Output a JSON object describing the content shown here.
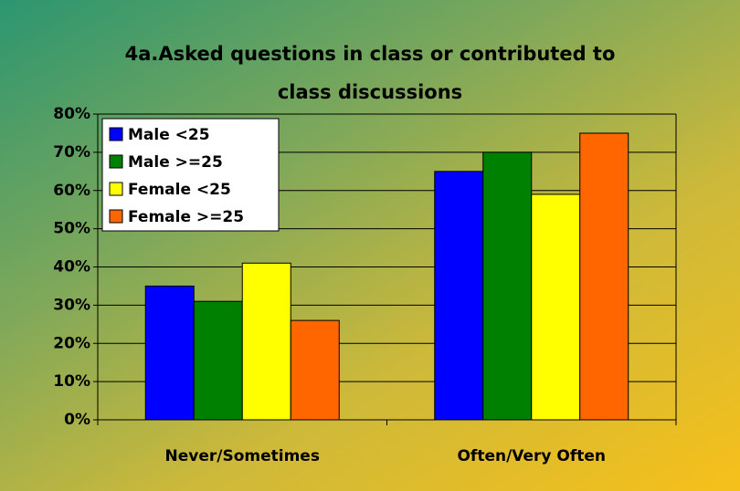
{
  "chart_data": {
    "type": "bar",
    "title": "4a.Asked questions in class or contributed to class discussions",
    "categories": [
      "Never/Sometimes",
      "Often/Very Often"
    ],
    "series": [
      {
        "name": "Male <25",
        "color": "#0000ff",
        "values": [
          35,
          65
        ]
      },
      {
        "name": "Male >=25",
        "color": "#008000",
        "values": [
          31,
          70
        ]
      },
      {
        "name": "Female <25",
        "color": "#ffff00",
        "values": [
          41,
          59
        ]
      },
      {
        "name": "Female >=25",
        "color": "#ff6600",
        "values": [
          26,
          75
        ]
      }
    ],
    "ylim": [
      0,
      80
    ],
    "yticks": [
      {
        "value": 0,
        "label": "0%"
      },
      {
        "value": 10,
        "label": "10%"
      },
      {
        "value": 20,
        "label": "20%"
      },
      {
        "value": 30,
        "label": "30%"
      },
      {
        "value": 40,
        "label": "40%"
      },
      {
        "value": 50,
        "label": "50%"
      },
      {
        "value": 60,
        "label": "60%"
      },
      {
        "value": 70,
        "label": "70%"
      },
      {
        "value": 80,
        "label": "80%"
      }
    ],
    "grid": true,
    "legend": "upper left"
  }
}
